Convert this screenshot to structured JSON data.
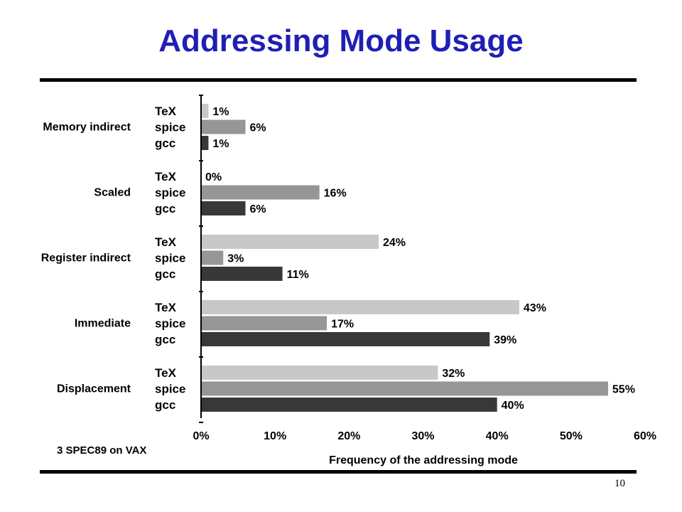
{
  "slide": {
    "title": "Addressing Mode Usage",
    "note": "3 SPEC89 on VAX",
    "page_number": "10"
  },
  "colors": {
    "title": "#1f1fb5",
    "TeX": "#c8c8c8",
    "spice": "#969696",
    "gcc": "#383838"
  },
  "chart_data": {
    "type": "bar",
    "orientation": "horizontal",
    "title": "",
    "xlabel": "Frequency of the addressing mode",
    "ylabel": "",
    "xlim": [
      0,
      60
    ],
    "x_ticks": [
      "0%",
      "10%",
      "20%",
      "30%",
      "40%",
      "50%",
      "60%"
    ],
    "categories": [
      "Memory indirect",
      "Scaled",
      "Register indirect",
      "Immediate",
      "Displacement"
    ],
    "series": [
      {
        "name": "TeX",
        "values": [
          1,
          0,
          24,
          43,
          32
        ]
      },
      {
        "name": "spice",
        "values": [
          6,
          16,
          3,
          17,
          55
        ]
      },
      {
        "name": "gcc",
        "values": [
          1,
          6,
          11,
          39,
          40
        ]
      }
    ],
    "value_suffix": "%",
    "grid": false,
    "legend": "none (series names labeled beside each bar)"
  }
}
